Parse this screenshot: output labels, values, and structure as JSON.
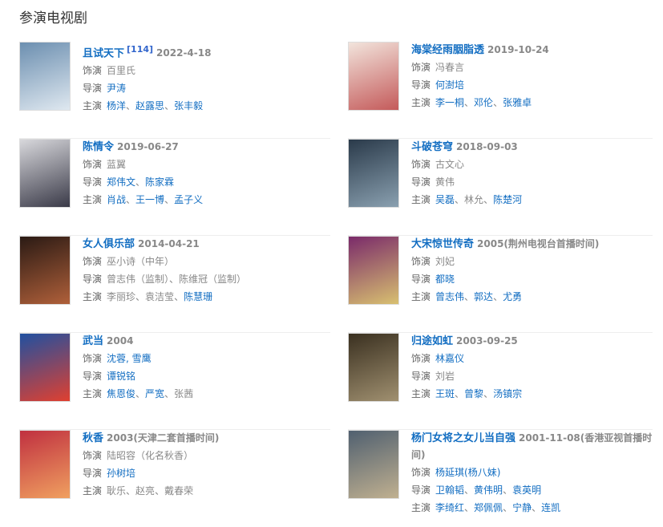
{
  "heading": "参演电视剧",
  "labels": {
    "role": "饰演",
    "director": "导演",
    "cast": "主演"
  },
  "colors": {
    "link": "#136ec2",
    "text": "#888888"
  },
  "items": [
    {
      "title": "且试天下",
      "ref": "[114]",
      "date": "2022-4-18",
      "poster": [
        "#6c8fb0",
        "#dfe8f0"
      ],
      "role": [
        {
          "n": "百里氏",
          "link": false
        }
      ],
      "director": [
        {
          "n": "尹涛",
          "link": true
        }
      ],
      "cast": [
        {
          "n": "杨洋",
          "link": true
        },
        {
          "n": "赵露思",
          "link": true
        },
        {
          "n": "张丰毅",
          "link": true
        }
      ]
    },
    {
      "title": "海棠经雨胭脂透",
      "date": "2019-10-24",
      "poster": [
        "#f2e4dc",
        "#c45a5a"
      ],
      "role": [
        {
          "n": "冯春言",
          "link": false
        }
      ],
      "director": [
        {
          "n": "何澍培",
          "link": true
        }
      ],
      "cast": [
        {
          "n": "李一桐",
          "link": true
        },
        {
          "n": "邓伦",
          "link": true
        },
        {
          "n": "张雅卓",
          "link": true
        }
      ]
    },
    {
      "title": "陈情令",
      "date": "2019-06-27",
      "poster": [
        "#d8d8dc",
        "#3a3a48"
      ],
      "role": [
        {
          "n": "蓝翼",
          "link": false
        }
      ],
      "director": [
        {
          "n": "郑伟文",
          "link": true
        },
        {
          "n": "陈家霖",
          "link": true
        }
      ],
      "cast": [
        {
          "n": "肖战",
          "link": true
        },
        {
          "n": "王一博",
          "link": true
        },
        {
          "n": "孟子义",
          "link": true
        }
      ]
    },
    {
      "title": "斗破苍穹",
      "date": "2018-09-03",
      "poster": [
        "#2a3a4a",
        "#8aa0b0"
      ],
      "role": [
        {
          "n": "古文心",
          "link": false
        }
      ],
      "director": [
        {
          "n": "黄伟",
          "link": false
        }
      ],
      "cast": [
        {
          "n": "吴磊",
          "link": true
        },
        {
          "n": "林允",
          "link": false
        },
        {
          "n": "陈楚河",
          "link": true
        }
      ]
    },
    {
      "title": "女人俱乐部",
      "date": "2014-04-21",
      "poster": [
        "#2a1a14",
        "#b0603a"
      ],
      "role": [
        {
          "n": "巫小诗（中年）",
          "link": false
        }
      ],
      "director": [
        {
          "n": "曾志伟（监制）",
          "link": false
        },
        {
          "n": "陈维冠（监制）",
          "link": false
        }
      ],
      "cast": [
        {
          "n": "李丽珍",
          "link": false
        },
        {
          "n": "袁洁莹",
          "link": false
        },
        {
          "n": "陈慧珊",
          "link": true
        }
      ]
    },
    {
      "title": "大宋惊世传奇",
      "date": "2005(荆州电视台首播时间)",
      "poster": [
        "#7a2a6a",
        "#d8c070"
      ],
      "role": [
        {
          "n": "刘妃",
          "link": false
        }
      ],
      "director": [
        {
          "n": "都晓",
          "link": true
        }
      ],
      "cast": [
        {
          "n": "曾志伟",
          "link": true
        },
        {
          "n": "郭达",
          "link": true
        },
        {
          "n": "尤勇",
          "link": true
        }
      ]
    },
    {
      "title": "武当",
      "date": "2004",
      "poster": [
        "#2050a0",
        "#e04030"
      ],
      "role": [
        {
          "n": "沈蓉, 雪鹰",
          "link": true
        }
      ],
      "director": [
        {
          "n": "谭锐铭",
          "link": true
        }
      ],
      "cast": [
        {
          "n": "焦恩俊",
          "link": true
        },
        {
          "n": "严宽",
          "link": true
        },
        {
          "n": "张茜",
          "link": false
        }
      ]
    },
    {
      "title": "归途如虹",
      "date": "2003-09-25",
      "poster": [
        "#3a3020",
        "#a09070"
      ],
      "role": [
        {
          "n": "林嘉仪",
          "link": true
        }
      ],
      "director": [
        {
          "n": "刘岩",
          "link": false
        }
      ],
      "cast": [
        {
          "n": "王斑",
          "link": true
        },
        {
          "n": "曾黎",
          "link": true
        },
        {
          "n": "汤镇宗",
          "link": true
        }
      ]
    },
    {
      "title": "秋香",
      "date": "2003(天津二套首播时间)",
      "poster": [
        "#c03040",
        "#f0a060"
      ],
      "role": [
        {
          "n": "陆昭容（化名秋香）",
          "link": false
        }
      ],
      "director": [
        {
          "n": "孙树培",
          "link": true
        }
      ],
      "cast": [
        {
          "n": "耿乐",
          "link": false
        },
        {
          "n": "赵亮",
          "link": false
        },
        {
          "n": "戴春荣",
          "link": false
        }
      ]
    },
    {
      "title": "杨门女将之女儿当自强",
      "date": "2001-11-08(香港亚视首播时间)",
      "poster": [
        "#506070",
        "#c0b090"
      ],
      "role": [
        {
          "n": "杨延琪(杨八妹)",
          "link": true
        }
      ],
      "director": [
        {
          "n": "卫翰韬",
          "link": true
        },
        {
          "n": "黄伟明",
          "link": true
        },
        {
          "n": "袁英明",
          "link": true
        }
      ],
      "cast": [
        {
          "n": "李绮红",
          "link": true
        },
        {
          "n": "郑佩佩",
          "link": true
        },
        {
          "n": "宁静",
          "link": true
        },
        {
          "n": "连凯",
          "link": true
        }
      ]
    }
  ]
}
